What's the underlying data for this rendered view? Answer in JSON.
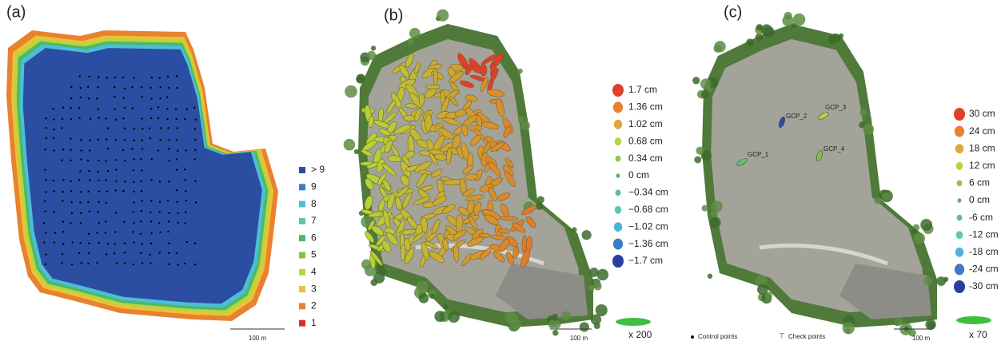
{
  "panels": [
    {
      "label": "(a)",
      "scale_bar": "100 m",
      "legend": [
        {
          "label": "> 9",
          "color": "#2b4ea2"
        },
        {
          "label": "9",
          "color": "#3a7bd0"
        },
        {
          "label": "8",
          "color": "#4cbfd5"
        },
        {
          "label": "7",
          "color": "#55c8a8"
        },
        {
          "label": "6",
          "color": "#4db86a"
        },
        {
          "label": "5",
          "color": "#7fc341"
        },
        {
          "label": "4",
          "color": "#b9d53b"
        },
        {
          "label": "3",
          "color": "#e8c23a"
        },
        {
          "label": "2",
          "color": "#e8822e"
        },
        {
          "label": "1",
          "color": "#d92c2c"
        }
      ]
    },
    {
      "label": "(b)",
      "scale_bar": "100 m",
      "ellipse_scale": "x 200",
      "legend": [
        {
          "label": "1.7 cm",
          "color": "#e0402a"
        },
        {
          "label": "1.36 cm",
          "color": "#e8802e"
        },
        {
          "label": "1.02 cm",
          "color": "#e0a83a"
        },
        {
          "label": "0.68 cm",
          "color": "#bcd23c"
        },
        {
          "label": "0.34 cm",
          "color": "#8cc84a"
        },
        {
          "label": "0 cm",
          "color": "#5cb85c"
        },
        {
          "label": "−0.34 cm",
          "color": "#5cc08a"
        },
        {
          "label": "−0.68 cm",
          "color": "#5cc8b4"
        },
        {
          "label": "−1.02 cm",
          "color": "#4cb4d8"
        },
        {
          "label": "−1.36 cm",
          "color": "#3a7cc8"
        },
        {
          "label": "−1.7 cm",
          "color": "#2b3e9e"
        }
      ]
    },
    {
      "label": "(c)",
      "scale_bar": "100 m",
      "ellipse_scale": "x 70",
      "points": [
        "GCP_1",
        "GCP_2",
        "GCP_3",
        "GCP_4"
      ],
      "marker_legend": [
        "Control points",
        "Check points"
      ],
      "legend": [
        {
          "label": "30 cm",
          "color": "#e0402a"
        },
        {
          "label": "24 cm",
          "color": "#e8802e"
        },
        {
          "label": "18 cm",
          "color": "#e0a83a"
        },
        {
          "label": "12 cm",
          "color": "#bcd23c"
        },
        {
          "label": "6 cm",
          "color": "#8cc84a"
        },
        {
          "label": "0 cm",
          "color": "#5cb85c"
        },
        {
          "label": "-6 cm",
          "color": "#5cc08a"
        },
        {
          "label": "-12 cm",
          "color": "#5cc8b4"
        },
        {
          "label": "-18 cm",
          "color": "#4cb4d8"
        },
        {
          "label": "-24 cm",
          "color": "#3a7cc8"
        },
        {
          "label": "-30 cm",
          "color": "#2b3e9e"
        }
      ]
    }
  ]
}
